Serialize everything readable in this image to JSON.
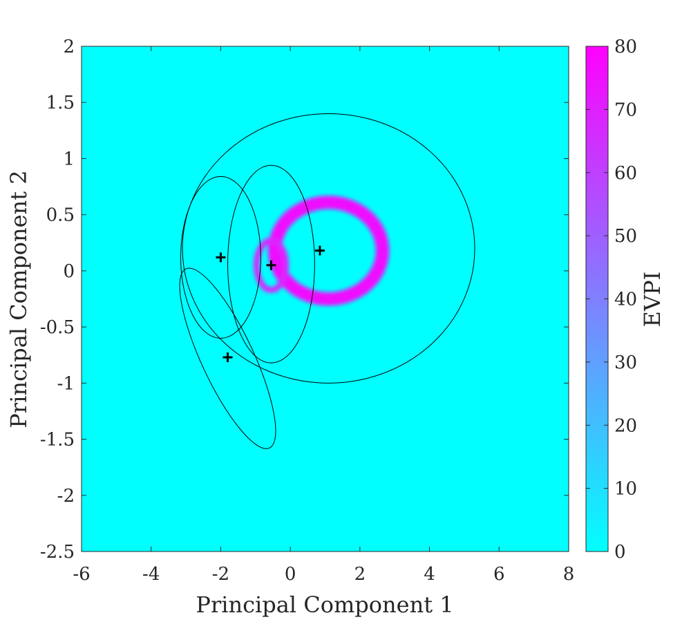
{
  "chart_data": {
    "type": "heatmap",
    "title": "",
    "xlabel": "Principal Component 1",
    "ylabel": "Principal Component 2",
    "xlim": [
      -6,
      8
    ],
    "ylim": [
      -2.5,
      2
    ],
    "xticks": [
      "-6",
      "-4",
      "-2",
      "0",
      "2",
      "4",
      "6",
      "8"
    ],
    "yticks": [
      "-2.5",
      "-2",
      "-1.5",
      "-1",
      "-0.5",
      "0",
      "0.5",
      "1",
      "1.5",
      "2"
    ],
    "colorbar": {
      "label": "EVPI",
      "range": [
        0,
        80
      ],
      "ticks": [
        "0",
        "10",
        "20",
        "30",
        "40",
        "50",
        "60",
        "70",
        "80"
      ],
      "colormap": "cool",
      "low_color": "#00ffff",
      "high_color": "#ff00ff"
    },
    "evpi_regions": [
      {
        "name": "large ring",
        "cx": 1.1,
        "cy": 0.18,
        "rx": 1.55,
        "ry": 0.43,
        "peak_evpi": 75
      },
      {
        "name": "small ring",
        "cx": -0.55,
        "cy": 0.05,
        "rx": 0.42,
        "ry": 0.22,
        "peak_evpi": 68
      }
    ],
    "background_evpi": 0,
    "centers": [
      {
        "x": -2.0,
        "y": 0.12
      },
      {
        "x": -0.55,
        "y": 0.05
      },
      {
        "x": 0.85,
        "y": 0.18
      },
      {
        "x": -1.8,
        "y": -0.77
      }
    ],
    "ellipses": [
      {
        "cx": 1.1,
        "cy": 0.2,
        "rx": 4.2,
        "ry": 1.2,
        "angle_deg": 0
      },
      {
        "cx": -2.0,
        "cy": 0.12,
        "rx": 1.15,
        "ry": 0.72,
        "angle_deg": 0
      },
      {
        "cx": -0.55,
        "cy": 0.06,
        "rx": 1.25,
        "ry": 0.88,
        "angle_deg": 0
      },
      {
        "cx": -1.8,
        "cy": -0.78,
        "rx": 0.75,
        "ry": 0.88,
        "angle_deg": -25
      }
    ]
  }
}
